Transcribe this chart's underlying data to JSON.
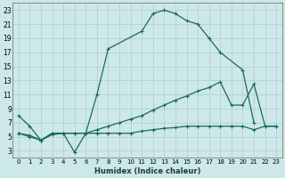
{
  "xlabel": "Humidex (Indice chaleur)",
  "bg_color": "#cce8e8",
  "grid_color": "#b0cccc",
  "line_color": "#1a6b5a",
  "xlim": [
    -0.5,
    23.5
  ],
  "ylim": [
    2,
    24
  ],
  "xticks": [
    0,
    1,
    2,
    3,
    4,
    5,
    6,
    7,
    8,
    9,
    10,
    11,
    12,
    13,
    14,
    15,
    16,
    17,
    18,
    19,
    20,
    21,
    22,
    23
  ],
  "yticks": [
    3,
    5,
    7,
    9,
    11,
    13,
    15,
    17,
    19,
    21,
    23
  ],
  "curve1_x": [
    0,
    1,
    2,
    3,
    4,
    5,
    6,
    7,
    8,
    11,
    12,
    13,
    14,
    15,
    16,
    17,
    18,
    20,
    21
  ],
  "curve1_y": [
    8,
    6.5,
    4.5,
    5.5,
    5.5,
    2.8,
    5.5,
    11,
    17.5,
    20,
    22.5,
    23,
    22.5,
    21.5,
    21,
    19,
    17,
    14.5,
    7
  ],
  "curve2_x": [
    0,
    1,
    2,
    3,
    4,
    5,
    6,
    7,
    8,
    9,
    10,
    11,
    12,
    13,
    14,
    15,
    16,
    17,
    18,
    19,
    20,
    21,
    22,
    23
  ],
  "curve2_y": [
    5.5,
    5.2,
    4.5,
    5.5,
    5.5,
    5.5,
    5.5,
    6.0,
    6.5,
    7.0,
    7.5,
    8.0,
    8.8,
    9.5,
    10.2,
    10.8,
    11.5,
    12.0,
    12.8,
    9.5,
    9.5,
    12.5,
    6.5,
    6.5
  ],
  "curve3_x": [
    0,
    1,
    2,
    3,
    4,
    5,
    6,
    7,
    8,
    9,
    10,
    11,
    12,
    13,
    14,
    15,
    16,
    17,
    18,
    19,
    20,
    21,
    22,
    23
  ],
  "curve3_y": [
    5.5,
    5.0,
    4.5,
    5.3,
    5.5,
    5.5,
    5.5,
    5.5,
    5.5,
    5.5,
    5.5,
    5.8,
    6.0,
    6.2,
    6.3,
    6.5,
    6.5,
    6.5,
    6.5,
    6.5,
    6.5,
    6.0,
    6.5,
    6.5
  ]
}
